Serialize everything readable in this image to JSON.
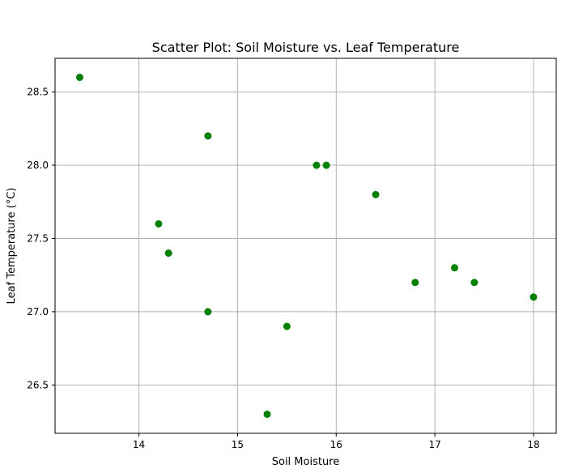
{
  "chart_data": {
    "type": "scatter",
    "title": "Scatter Plot: Soil Moisture vs. Leaf Temperature",
    "xlabel": "Soil Moisture",
    "ylabel": "Leaf Temperature (°C)",
    "xlim": [
      13.15,
      18.23
    ],
    "ylim": [
      26.17,
      28.73
    ],
    "xticks": [
      14,
      15,
      16,
      17,
      18
    ],
    "xtick_labels": [
      "14",
      "15",
      "16",
      "17",
      "18"
    ],
    "yticks": [
      26.5,
      27.0,
      27.5,
      28.0,
      28.5
    ],
    "ytick_labels": [
      "26.5",
      "27.0",
      "27.5",
      "28.0",
      "28.5"
    ],
    "grid": true,
    "marker_color": "#008000",
    "series": [
      {
        "points": [
          {
            "x": 13.4,
            "y": 28.6
          },
          {
            "x": 14.2,
            "y": 27.6
          },
          {
            "x": 14.3,
            "y": 27.4
          },
          {
            "x": 14.7,
            "y": 28.2
          },
          {
            "x": 14.7,
            "y": 27.0
          },
          {
            "x": 15.3,
            "y": 26.3
          },
          {
            "x": 15.5,
            "y": 26.9
          },
          {
            "x": 15.8,
            "y": 28.0
          },
          {
            "x": 15.9,
            "y": 28.0
          },
          {
            "x": 16.4,
            "y": 27.8
          },
          {
            "x": 16.8,
            "y": 27.2
          },
          {
            "x": 17.2,
            "y": 27.3
          },
          {
            "x": 17.4,
            "y": 27.2
          },
          {
            "x": 18.0,
            "y": 27.1
          }
        ]
      }
    ]
  }
}
